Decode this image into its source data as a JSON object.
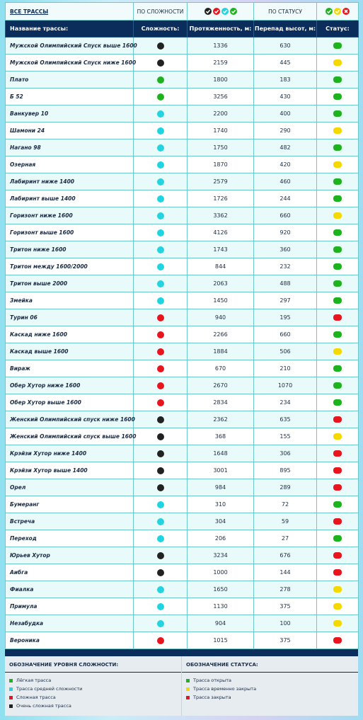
{
  "filter": {
    "all": "ВСЕ ТРАССЫ",
    "by_difficulty": "ПО СЛОЖНОСТИ",
    "difficulty_icons": [
      "#222222",
      "#e8141e",
      "#22d3e0",
      "#1db31d"
    ],
    "by_status": "ПО СТАТУСУ",
    "status_icons": [
      "#1db31d",
      "#f5d800",
      "#e8141e"
    ]
  },
  "table": {
    "columns": [
      "Название трассы:",
      "Сложность:",
      "Протяженность, м:",
      "Перепад высот, м:",
      "Статус:"
    ],
    "rows": [
      {
        "name": "Мужской Олимпийский Спуск выше 1600",
        "difficulty": "#222222",
        "length": "1336",
        "drop": "630",
        "status": "#1db31d"
      },
      {
        "name": "Мужской Олимпийский Спуск ниже 1600",
        "difficulty": "#222222",
        "length": "2159",
        "drop": "445",
        "status": "#f5d800"
      },
      {
        "name": "Плато",
        "difficulty": "#1db31d",
        "length": "1800",
        "drop": "183",
        "status": "#1db31d"
      },
      {
        "name": "Б 52",
        "difficulty": "#1db31d",
        "length": "3256",
        "drop": "430",
        "status": "#1db31d"
      },
      {
        "name": "Ванкувер 10",
        "difficulty": "#22d3e0",
        "length": "2200",
        "drop": "400",
        "status": "#1db31d"
      },
      {
        "name": "Шамони 24",
        "difficulty": "#22d3e0",
        "length": "1740",
        "drop": "290",
        "status": "#f5d800"
      },
      {
        "name": "Нагано 98",
        "difficulty": "#22d3e0",
        "length": "1750",
        "drop": "482",
        "status": "#1db31d"
      },
      {
        "name": "Озерная",
        "difficulty": "#22d3e0",
        "length": "1870",
        "drop": "420",
        "status": "#f5d800"
      },
      {
        "name": "Лабиринт ниже 1400",
        "difficulty": "#22d3e0",
        "length": "2579",
        "drop": "460",
        "status": "#1db31d"
      },
      {
        "name": "Лабиринт выше 1400",
        "difficulty": "#22d3e0",
        "length": "1726",
        "drop": "244",
        "status": "#1db31d"
      },
      {
        "name": "Горизонт ниже 1600",
        "difficulty": "#22d3e0",
        "length": "3362",
        "drop": "660",
        "status": "#f5d800"
      },
      {
        "name": "Горизонт выше 1600",
        "difficulty": "#22d3e0",
        "length": "4126",
        "drop": "920",
        "status": "#1db31d"
      },
      {
        "name": "Тритон ниже 1600",
        "difficulty": "#22d3e0",
        "length": "1743",
        "drop": "360",
        "status": "#1db31d"
      },
      {
        "name": "Тритон между 1600/2000",
        "difficulty": "#22d3e0",
        "length": "844",
        "drop": "232",
        "status": "#1db31d"
      },
      {
        "name": "Тритон выше 2000",
        "difficulty": "#22d3e0",
        "length": "2063",
        "drop": "488",
        "status": "#1db31d"
      },
      {
        "name": "Змейка",
        "difficulty": "#22d3e0",
        "length": "1450",
        "drop": "297",
        "status": "#1db31d"
      },
      {
        "name": "Турин 06",
        "difficulty": "#e8141e",
        "length": "940",
        "drop": "195",
        "status": "#e8141e"
      },
      {
        "name": "Каскад ниже 1600",
        "difficulty": "#e8141e",
        "length": "2266",
        "drop": "660",
        "status": "#1db31d"
      },
      {
        "name": "Каскад выше 1600",
        "difficulty": "#e8141e",
        "length": "1884",
        "drop": "506",
        "status": "#f5d800"
      },
      {
        "name": "Вираж",
        "difficulty": "#e8141e",
        "length": "670",
        "drop": "210",
        "status": "#1db31d"
      },
      {
        "name": "Обер Хутор ниже 1600",
        "difficulty": "#e8141e",
        "length": "2670",
        "drop": "1070",
        "status": "#1db31d"
      },
      {
        "name": "Обер Хутор выше 1600",
        "difficulty": "#e8141e",
        "length": "2834",
        "drop": "234",
        "status": "#1db31d"
      },
      {
        "name": "Женский Олимпийский спуск ниже 1600",
        "difficulty": "#222222",
        "length": "2362",
        "drop": "635",
        "status": "#e8141e"
      },
      {
        "name": "Женский Олимпийский спуск выше 1600",
        "difficulty": "#222222",
        "length": "368",
        "drop": "155",
        "status": "#f5d800"
      },
      {
        "name": "Крэйзи Хутор ниже 1400",
        "difficulty": "#222222",
        "length": "1648",
        "drop": "306",
        "status": "#e8141e"
      },
      {
        "name": "Крэйзи Хутор выше 1400",
        "difficulty": "#222222",
        "length": "3001",
        "drop": "895",
        "status": "#e8141e"
      },
      {
        "name": "Орел",
        "difficulty": "#222222",
        "length": "984",
        "drop": "289",
        "status": "#e8141e"
      },
      {
        "name": "Бумеранг",
        "difficulty": "#22d3e0",
        "length": "310",
        "drop": "72",
        "status": "#1db31d"
      },
      {
        "name": "Встреча",
        "difficulty": "#22d3e0",
        "length": "304",
        "drop": "59",
        "status": "#e8141e"
      },
      {
        "name": "Переход",
        "difficulty": "#22d3e0",
        "length": "206",
        "drop": "27",
        "status": "#1db31d"
      },
      {
        "name": "Юрьев Хутор",
        "difficulty": "#222222",
        "length": "3234",
        "drop": "676",
        "status": "#e8141e"
      },
      {
        "name": "Аибга",
        "difficulty": "#222222",
        "length": "1000",
        "drop": "144",
        "status": "#e8141e"
      },
      {
        "name": "Фиалка",
        "difficulty": "#22d3e0",
        "length": "1650",
        "drop": "278",
        "status": "#f5d800"
      },
      {
        "name": "Примула",
        "difficulty": "#22d3e0",
        "length": "1130",
        "drop": "375",
        "status": "#f5d800"
      },
      {
        "name": "Незабудка",
        "difficulty": "#22d3e0",
        "length": "904",
        "drop": "100",
        "status": "#f5d800"
      },
      {
        "name": "Вероника",
        "difficulty": "#e8141e",
        "length": "1015",
        "drop": "375",
        "status": "#e8141e"
      }
    ]
  },
  "legend": {
    "difficulty": {
      "title": "ОБОЗНАЧЕНИЕ УРОВНЯ СЛОЖНОСТИ:",
      "items": [
        {
          "label": "Лёгкая трасса",
          "color": "#1db31d"
        },
        {
          "label": "Трасса средней сложности",
          "color": "#22d3e0"
        },
        {
          "label": "Сложная трасса",
          "color": "#e8141e"
        },
        {
          "label": "Очень сложная трасса",
          "color": "#222222"
        }
      ]
    },
    "status": {
      "title": "ОБОЗНАЧЕНИЕ СТАТУСА:",
      "items": [
        {
          "label": "Трасса открыта",
          "color": "#1db31d"
        },
        {
          "label": "Трасса временно закрыта",
          "color": "#f5d800"
        },
        {
          "label": "Трасса закрыта",
          "color": "#e8141e"
        }
      ]
    }
  }
}
